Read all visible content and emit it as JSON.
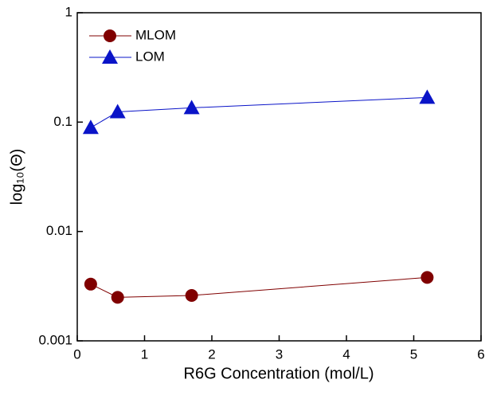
{
  "chart_data": {
    "type": "line",
    "x_label": "R6G Concentration (mol/L)",
    "y_label": "log₁₀(Θ)",
    "log_y": true,
    "legend": "upper left",
    "xlim": [
      0,
      6
    ],
    "xticks": [
      0,
      1,
      2,
      3,
      4,
      5,
      6
    ],
    "ylim": [
      0.001,
      1
    ],
    "yticks": [
      0.001,
      0.01,
      0.1,
      1
    ],
    "series": [
      {
        "name": "MLOM",
        "color": "#800000",
        "marker": "circle",
        "x": [
          0.2,
          0.6,
          1.7,
          5.2
        ],
        "values": [
          0.0033,
          0.0025,
          0.0026,
          0.0038
        ]
      },
      {
        "name": "LOM",
        "color": "#0a14c8",
        "marker": "triangle",
        "x": [
          0.2,
          0.6,
          1.7,
          5.2
        ],
        "values": [
          0.089,
          0.124,
          0.135,
          0.168
        ]
      }
    ]
  }
}
